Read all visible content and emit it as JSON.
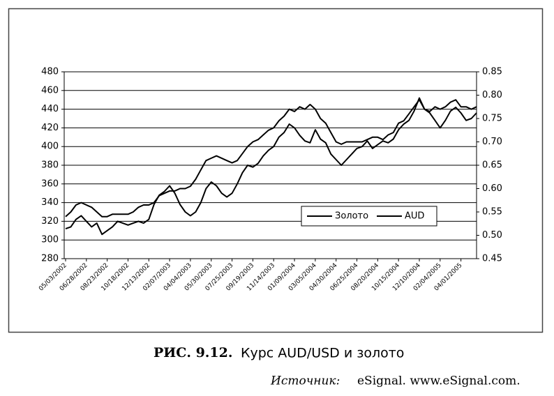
{
  "chart_data": {
    "type": "line",
    "categories": [
      "05/03/2002",
      null,
      null,
      null,
      "06/28/2002",
      null,
      null,
      null,
      "08/23/2002",
      null,
      null,
      null,
      "10/18/2002",
      null,
      null,
      null,
      "12/13/2002",
      null,
      null,
      null,
      "02/07/2003",
      null,
      null,
      null,
      "04/04/2003",
      null,
      null,
      null,
      "05/30/2003",
      null,
      null,
      null,
      "07/25/2003",
      null,
      null,
      null,
      "09/19/2003",
      null,
      null,
      null,
      "11/14/2003",
      null,
      null,
      null,
      "01/09/2004",
      null,
      null,
      null,
      "03/05/2004",
      null,
      null,
      null,
      "04/30/2004",
      null,
      null,
      null,
      "06/25/2004",
      null,
      null,
      null,
      "08/20/2004",
      null,
      null,
      null,
      "10/15/2004",
      null,
      null,
      null,
      "12/10/2004",
      null,
      null,
      null,
      "02/04/2005",
      null,
      null,
      null,
      "04/01/2005",
      null,
      null,
      null
    ],
    "series": [
      {
        "name": "Золото",
        "color": "#000000",
        "values": [
          312,
          314,
          322,
          326,
          320,
          314,
          318,
          306,
          310,
          314,
          320,
          318,
          316,
          318,
          320,
          318,
          322,
          338,
          348,
          352,
          358,
          350,
          338,
          330,
          326,
          330,
          340,
          355,
          362,
          358,
          350,
          346,
          350,
          360,
          372,
          380,
          378,
          382,
          390,
          396,
          400,
          410,
          415,
          424,
          420,
          412,
          406,
          404,
          418,
          408,
          404,
          392,
          386,
          380,
          386,
          392,
          398,
          400,
          406,
          398,
          402,
          406,
          404,
          408,
          418,
          424,
          428,
          438,
          452,
          440,
          436,
          428,
          420,
          428,
          438,
          442,
          436,
          428,
          430,
          436
        ]
      },
      {
        "name": "AUD",
        "color": "#000000",
        "axis": "y2",
        "values": [
          0.54,
          0.55,
          0.565,
          0.57,
          0.565,
          0.56,
          0.55,
          0.54,
          0.54,
          0.545,
          0.545,
          0.545,
          0.545,
          0.55,
          0.56,
          0.565,
          0.565,
          0.57,
          0.585,
          0.59,
          0.595,
          0.595,
          0.6,
          0.6,
          0.605,
          0.62,
          0.64,
          0.66,
          0.665,
          0.67,
          0.665,
          0.66,
          0.655,
          0.66,
          0.675,
          0.69,
          0.7,
          0.705,
          0.715,
          0.725,
          0.73,
          0.745,
          0.755,
          0.77,
          0.765,
          0.775,
          0.77,
          0.78,
          0.77,
          0.75,
          0.74,
          0.72,
          0.7,
          0.695,
          0.7,
          0.7,
          0.7,
          0.7,
          0.705,
          0.71,
          0.71,
          0.705,
          0.715,
          0.72,
          0.74,
          0.745,
          0.76,
          0.775,
          0.79,
          0.77,
          0.765,
          0.775,
          0.77,
          0.775,
          0.785,
          0.79,
          0.775,
          0.775,
          0.77,
          0.775
        ]
      }
    ],
    "ylim": [
      280,
      480
    ],
    "yticks": [
      280,
      300,
      320,
      340,
      360,
      380,
      400,
      420,
      440,
      460,
      480
    ],
    "y2lim": [
      0.45,
      0.85
    ],
    "y2ticks": [
      0.45,
      {
        "value": 0.5,
        "label": "0.50"
      },
      0.55,
      {
        "value": 0.6,
        "label": "0.60"
      },
      0.65,
      {
        "value": 0.7,
        "label": "0.70"
      },
      0.75,
      {
        "value": 0.8,
        "label": "0.80"
      },
      0.85
    ],
    "grid": true,
    "legend": "center right"
  },
  "caption": {
    "figure": "РИС. 9.12.",
    "title": "Курс AUD/USD и золото"
  },
  "source": {
    "label": "Источник:",
    "text": "eSignal. www.eSignal.com."
  }
}
